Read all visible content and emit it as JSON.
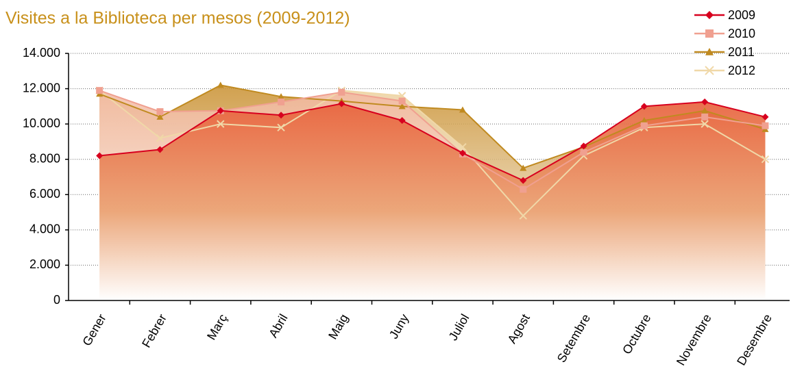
{
  "chart_data": {
    "type": "area-line",
    "title": "Visites a la Biblioteca per mesos (2009-2012)",
    "categories": [
      "Gener",
      "Febrer",
      "Març",
      "Abril",
      "Maig",
      "Juny",
      "Juliol",
      "Agost",
      "Setembre",
      "Octubre",
      "Novembre",
      "Desembre"
    ],
    "series": [
      {
        "name": "2009",
        "color": "#d7001e",
        "marker": "diamond",
        "values": [
          8200,
          8550,
          10750,
          10500,
          11150,
          10200,
          8350,
          6800,
          8750,
          11000,
          11250,
          10400
        ]
      },
      {
        "name": "2010",
        "color": "#f0a090",
        "marker": "square",
        "values": [
          11900,
          10700,
          10750,
          11250,
          11800,
          11300,
          8300,
          6300,
          8400,
          9900,
          10400,
          9900
        ]
      },
      {
        "name": "2011",
        "color": "#c08a20",
        "marker": "triangle",
        "values": [
          11700,
          10400,
          12200,
          11550,
          11300,
          11000,
          10800,
          7500,
          8700,
          10200,
          10750,
          9700
        ]
      },
      {
        "name": "2012",
        "color": "#f0d8a8",
        "marker": "x",
        "values": [
          11900,
          9200,
          10000,
          9800,
          11900,
          11600,
          8700,
          4800,
          8200,
          9800,
          10000,
          8000
        ]
      }
    ],
    "ylim": [
      0,
      14000
    ],
    "yticks": [
      0,
      {
        "value": 2000,
        "label": "2.000"
      },
      {
        "value": 4000,
        "label": "4.000"
      },
      {
        "value": 6000,
        "label": "6.000"
      },
      {
        "value": 8000,
        "label": "8.000"
      },
      {
        "value": 10000,
        "label": "10.000"
      },
      {
        "value": 12000,
        "label": "12.000"
      },
      {
        "value": 14000,
        "label": "14.000"
      }
    ],
    "grid": true,
    "legend": "top-right"
  }
}
